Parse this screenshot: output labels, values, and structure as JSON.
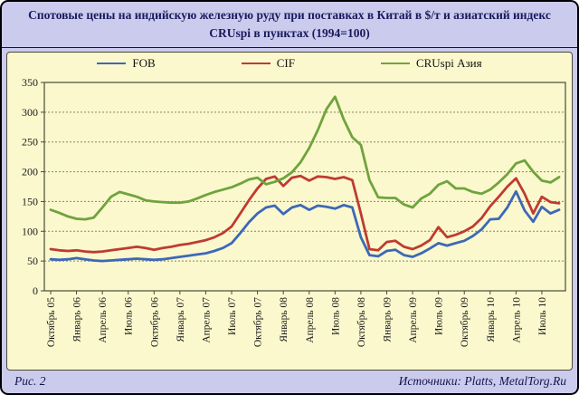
{
  "title": "Спотовые цены на индийскую железную руду при поставках в Китай в $/т и азиатский индекс CRUspi в пунктах (1994=100)",
  "footer": {
    "left": "Рис. 2",
    "right": "Источники: Platts, MetalTorg.Ru"
  },
  "legend": [
    {
      "label": "FOB",
      "color": "#3d68b8"
    },
    {
      "label": "CIF",
      "color": "#bf3b32"
    },
    {
      "label": "CRUspi Азия",
      "color": "#6fa33e"
    }
  ],
  "colors": {
    "frame_background": "#cbcbed",
    "panel_background": "#fbf8cd",
    "title_text": "#1a1a5e",
    "axis_text": "#1c1c1c",
    "gridline": "#85855f",
    "plot_border": "#4a4a38",
    "fob_line": "#3d68b8",
    "cif_line": "#bf3b32",
    "cruspi_line": "#6fa33e"
  },
  "chart_data": {
    "type": "line",
    "title": "Спотовые цены на индийскую железную руду при поставках в Китай в $/т и азиатский индекс CRUspi в пунктах (1994=100)",
    "xlabel": "",
    "ylabel": "",
    "ylim": [
      0,
      350
    ],
    "ytick_step": 50,
    "ytick_labels": [
      "0",
      "50",
      "100",
      "150",
      "200",
      "250",
      "300",
      "350"
    ],
    "grid": "horizontal dotted",
    "legend_position": "top",
    "x_points": 60,
    "x_resolution": "monthly from Октябрь 05 to Сентябрь 10, tick label every 3 months",
    "x_tick_every": 3,
    "x_tick_labels": [
      "Октябрь 05",
      "Январь 06",
      "Апрель 06",
      "Июль 06",
      "Октябрь 06",
      "Январь 07",
      "Апрель 07",
      "Июль 07",
      "Октябрь 07",
      "Январь 08",
      "Апрель 08",
      "Июль 08",
      "Октябрь 08",
      "Январь 09",
      "Апрель 09",
      "Июль 09",
      "Октябрь 09",
      "Январь 10",
      "Апрель 10",
      "Июль 10"
    ],
    "series": [
      {
        "name": "FOB",
        "unit": "$/т",
        "color": "#3d68b8",
        "values": [
          53,
          52,
          53,
          55,
          53,
          51,
          50,
          51,
          52,
          53,
          54,
          53,
          52,
          53,
          55,
          57,
          59,
          61,
          63,
          67,
          72,
          80,
          97,
          115,
          130,
          140,
          143,
          129,
          140,
          144,
          136,
          143,
          141,
          138,
          144,
          140,
          90,
          60,
          58,
          67,
          69,
          60,
          57,
          63,
          71,
          80,
          76,
          80,
          84,
          92,
          103,
          120,
          121,
          140,
          167,
          135,
          116,
          141,
          130,
          136
        ]
      },
      {
        "name": "CIF",
        "unit": "$/т",
        "color": "#bf3b32",
        "values": [
          70,
          68,
          67,
          68,
          66,
          65,
          66,
          68,
          70,
          72,
          74,
          72,
          69,
          72,
          74,
          77,
          79,
          82,
          85,
          90,
          97,
          108,
          130,
          152,
          172,
          188,
          192,
          176,
          190,
          193,
          185,
          192,
          191,
          188,
          191,
          186,
          130,
          70,
          68,
          82,
          84,
          74,
          70,
          76,
          85,
          107,
          90,
          94,
          100,
          108,
          122,
          142,
          158,
          175,
          189,
          163,
          130,
          158,
          149,
          147
        ]
      },
      {
        "name": "CRUspi Азия",
        "unit": "пункты",
        "color": "#6fa33e",
        "values": [
          136,
          131,
          125,
          121,
          120,
          123,
          140,
          158,
          166,
          162,
          158,
          152,
          150,
          149,
          148,
          148,
          150,
          155,
          161,
          166,
          170,
          174,
          180,
          187,
          190,
          179,
          183,
          189,
          199,
          216,
          240,
          270,
          305,
          326,
          288,
          258,
          245,
          186,
          157,
          156,
          156,
          145,
          140,
          155,
          163,
          178,
          184,
          172,
          172,
          166,
          163,
          170,
          182,
          196,
          214,
          219,
          200,
          185,
          182,
          191
        ]
      }
    ]
  }
}
